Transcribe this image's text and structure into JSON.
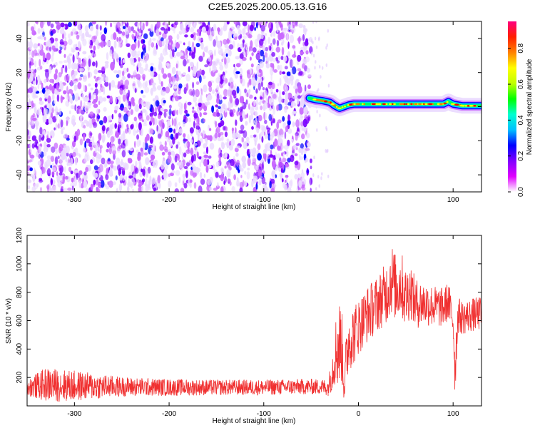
{
  "title": "C2E5.2025.200.05.13.G16",
  "colors": {
    "snr_line": "#f03030",
    "cmap": [
      "#ffffff",
      "#c866ff",
      "#7a00ff",
      "#0000ff",
      "#00d8ff",
      "#00ff60",
      "#ffff00",
      "#ff8000",
      "#ff0000",
      "#ff00ff"
    ]
  },
  "chart_data": [
    {
      "type": "heatmap",
      "xlabel": "Height of straight line (km)",
      "ylabel": "Frequency (Hz)",
      "xlim": [
        -350,
        130
      ],
      "ylim": [
        -50,
        50
      ],
      "xticks": [
        -300,
        -200,
        -100,
        0,
        100
      ],
      "yticks": [
        -40,
        -20,
        0,
        20,
        40
      ],
      "noise_region_x": [
        -350,
        -50
      ],
      "signal_trace": {
        "x": [
          -52,
          -45,
          -38,
          -30,
          -25,
          -20,
          -15,
          -10,
          -5,
          0,
          20,
          40,
          60,
          80,
          90,
          95,
          100,
          110,
          120,
          130
        ],
        "y": [
          5,
          4,
          3.5,
          2.5,
          0.5,
          -1,
          0,
          1,
          1.5,
          1.5,
          1.5,
          1.5,
          1.5,
          1.5,
          1.5,
          3,
          1.5,
          0.5,
          0.5,
          0.5
        ]
      },
      "colorbar": {
        "label": "Normalized spectral amplitude",
        "range": [
          0,
          0.95
        ],
        "ticks": [
          "0.0",
          "0.2",
          "0.4",
          "0.6",
          "0.8"
        ]
      }
    },
    {
      "type": "line",
      "xlabel": "Height of straight line (km)",
      "ylabel": "SNR (10 * v/v)",
      "xlim": [
        -350,
        130
      ],
      "ylim": [
        0,
        1200
      ],
      "xticks": [
        -300,
        -200,
        -100,
        0,
        100
      ],
      "yticks": [
        200,
        400,
        600,
        800,
        1000,
        1200
      ],
      "series": [
        {
          "x": [
            -350,
            -330,
            -300,
            -250,
            -200,
            -150,
            -100,
            -60,
            -40,
            -32,
            -28,
            -25,
            -22,
            -18,
            -15,
            -12,
            -10,
            -5,
            0,
            10,
            20,
            30,
            35,
            40,
            45,
            50,
            55,
            60,
            70,
            80,
            90,
            95,
            100,
            102,
            105,
            110,
            120,
            130
          ],
          "y": [
            130,
            150,
            140,
            135,
            130,
            130,
            130,
            135,
            135,
            130,
            230,
            360,
            420,
            460,
            150,
            380,
            470,
            500,
            560,
            650,
            720,
            800,
            900,
            820,
            860,
            760,
            820,
            720,
            720,
            700,
            690,
            740,
            600,
            250,
            640,
            620,
            640,
            650
          ],
          "spread": [
            60,
            120,
            110,
            70,
            60,
            55,
            55,
            55,
            55,
            60,
            130,
            220,
            320,
            300,
            150,
            240,
            220,
            220,
            200,
            200,
            200,
            220,
            260,
            230,
            240,
            220,
            200,
            180,
            160,
            150,
            140,
            140,
            130,
            200,
            130,
            120,
            120,
            120
          ]
        }
      ]
    }
  ]
}
